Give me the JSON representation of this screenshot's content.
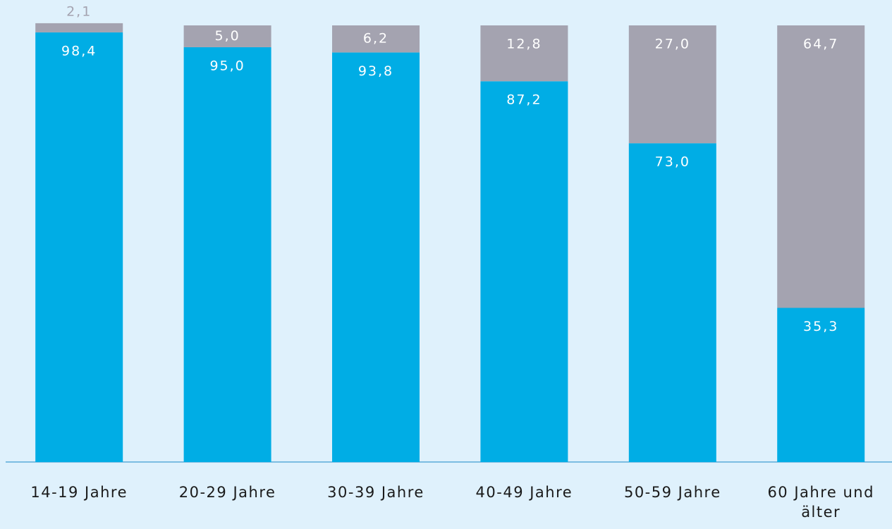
{
  "chart_data": {
    "type": "stacked_bar",
    "categories": [
      "14-19 Jahre",
      "20-29 Jahre",
      "30-39 Jahre",
      "40-49 Jahre",
      "50-59 Jahre",
      "60 Jahre und älter"
    ],
    "series": [
      {
        "color": "#00ade5",
        "values": [
          98.4,
          95.0,
          93.8,
          87.2,
          73.0,
          35.3
        ],
        "value_labels": [
          "98,4",
          "95,0",
          "93,8",
          "87,2",
          "73,0",
          "35,3"
        ]
      },
      {
        "color": "#a4a3b0",
        "values": [
          2.1,
          5.0,
          6.2,
          12.8,
          27.0,
          64.7
        ],
        "value_labels": [
          "2,1",
          "5,0",
          "6,2",
          "12,8",
          "27,0",
          "64,7"
        ]
      }
    ],
    "ylim": [
      0,
      100
    ]
  }
}
